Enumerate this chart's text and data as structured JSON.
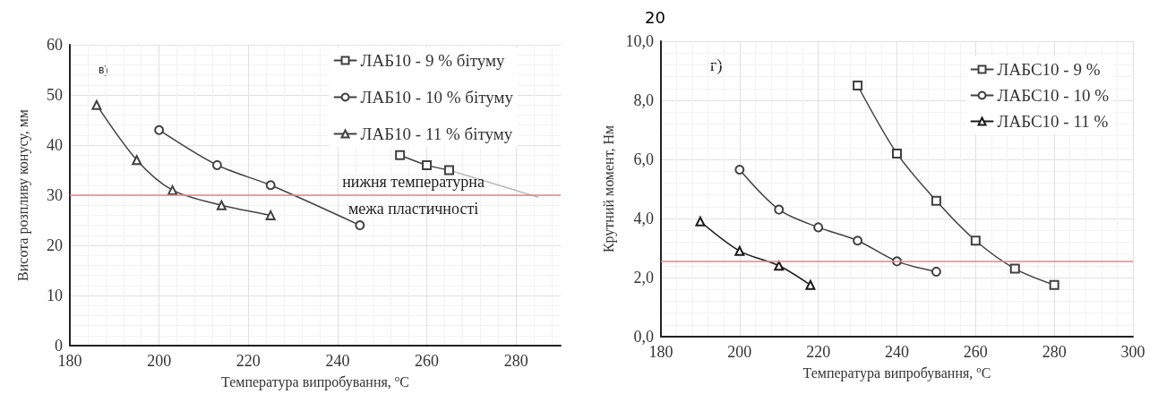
{
  "chart_data": [
    {
      "type": "line",
      "xlabel": "Температура випробування, $^{o}$C",
      "ylabel": "Висота розпливу конусу, мм",
      "annotations": [
        "в)"
      ],
      "xlim": [
        180,
        290
      ],
      "xticks": [
        180,
        200,
        220,
        240,
        260,
        280
      ],
      "ylim": [
        0,
        60
      ],
      "yticks": [
        0,
        10,
        20,
        30,
        40,
        50,
        60
      ],
      "grid": true,
      "legend": "top right",
      "ref_lines": [
        {
          "axis": "y",
          "value": 30,
          "label": "нижня температурна межа пластичності",
          "color": "#f08080"
        }
      ],
      "series": [
        {
          "name": "ЛАБ10 - 9 % бітуму",
          "color": "#404040",
          "marker": "square",
          "x": [
            254,
            260,
            265
          ],
          "values": [
            38,
            36,
            35
          ]
        },
        {
          "name": "ЛАБ10 - 10 % бітуму",
          "color": "#404040",
          "marker": "circle",
          "x": [
            200,
            213,
            225,
            245
          ],
          "values": [
            43,
            36,
            32,
            24
          ]
        },
        {
          "name": "ЛАБ10 - 11 % бітуму",
          "color": "#404040",
          "marker": "triangle",
          "x": [
            186,
            195,
            203,
            214,
            225
          ],
          "values": [
            48,
            37,
            31,
            28,
            26
          ]
        },
        {
          "color": "#b0b0b0",
          "marker": "none",
          "line_style": "dotted",
          "x": [
            265,
            285
          ],
          "values": [
            35,
            29.6
          ]
        }
      ]
    },
    {
      "type": "line",
      "xlabel": "Температура випробування, $^{o}$C",
      "ylabel": "Крутний момент, Нм",
      "annotations": [
        "г)",
        "20"
      ],
      "xlim": [
        180,
        300
      ],
      "xticks": [
        180,
        200,
        220,
        240,
        260,
        280,
        300
      ],
      "ylim": [
        0,
        10
      ],
      "yticks": [
        {
          "value": 0,
          "label": "0,0"
        },
        {
          "value": 2,
          "label": "2,0"
        },
        {
          "value": 4,
          "label": "4,0"
        },
        {
          "value": 6,
          "label": "6,0"
        },
        {
          "value": 8,
          "label": "8,0"
        },
        {
          "value": 10,
          "label": "10,0"
        }
      ],
      "grid": true,
      "legend": "top right",
      "ref_lines": [
        {
          "axis": "y",
          "value": 2.55,
          "color": "#f08080"
        }
      ],
      "series": [
        {
          "name": "ЛАБС10 - 9 %",
          "color": "#404040",
          "marker": "square",
          "x": [
            230,
            240,
            250,
            260,
            270,
            280
          ],
          "values": [
            8.5,
            6.2,
            4.6,
            3.25,
            2.3,
            1.75
          ]
        },
        {
          "name": "ЛАБС10 - 10 %",
          "color": "#404040",
          "marker": "circle",
          "x": [
            200,
            210,
            220,
            230,
            240,
            250
          ],
          "values": [
            5.65,
            4.3,
            3.7,
            3.25,
            2.55,
            2.2
          ]
        },
        {
          "name": "ЛАБС10 - 11 %",
          "color": "#1a1a1a",
          "marker": "triangle",
          "x": [
            190,
            200,
            210,
            218
          ],
          "values": [
            3.9,
            2.9,
            2.4,
            1.75
          ]
        }
      ]
    }
  ]
}
